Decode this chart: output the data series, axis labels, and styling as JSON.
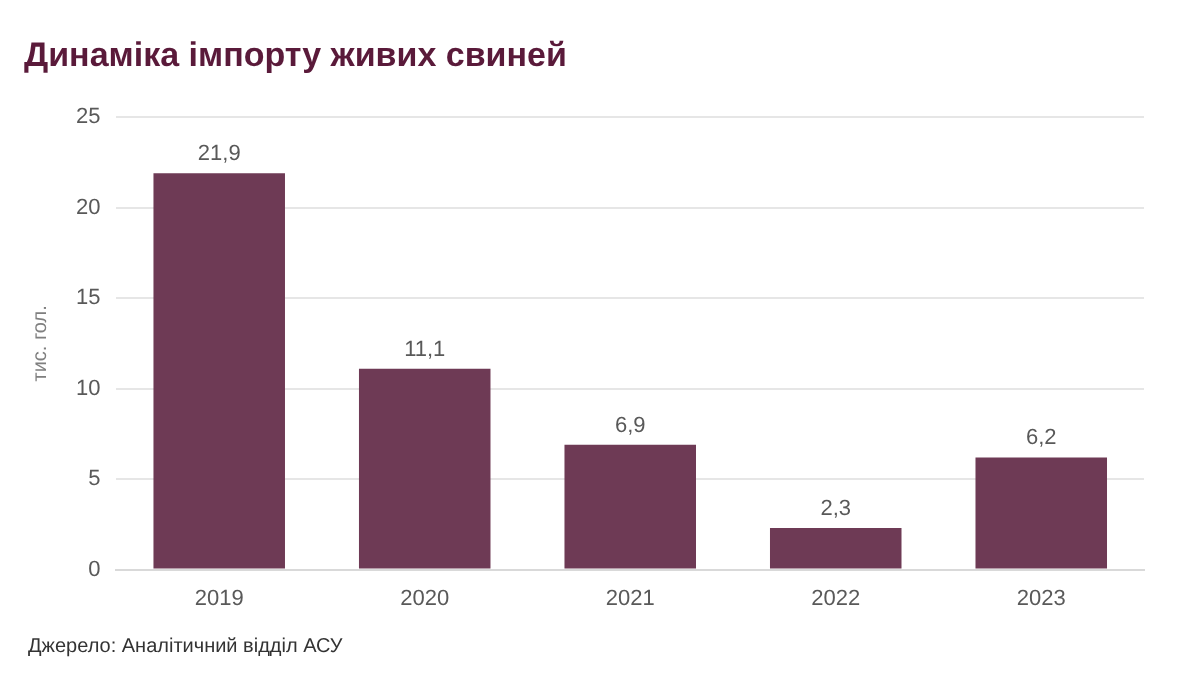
{
  "chart_data": {
    "type": "bar",
    "title": "Динаміка імпорту живих свиней",
    "ylabel": "тис. гол.",
    "categories": [
      "2019",
      "2020",
      "2021",
      "2022",
      "2023"
    ],
    "values": [
      21.9,
      11.1,
      6.9,
      2.3,
      6.2
    ],
    "value_labels": [
      "21,9",
      "11,1",
      "6,9",
      "2,3",
      "6,2"
    ],
    "color": "#6e3a55",
    "ylim": [
      0,
      25
    ],
    "yticks": [
      0,
      5,
      10,
      15,
      20,
      25
    ],
    "grid": "y",
    "annotations": [
      "Джерело: Аналітичний відділ АСУ"
    ]
  }
}
